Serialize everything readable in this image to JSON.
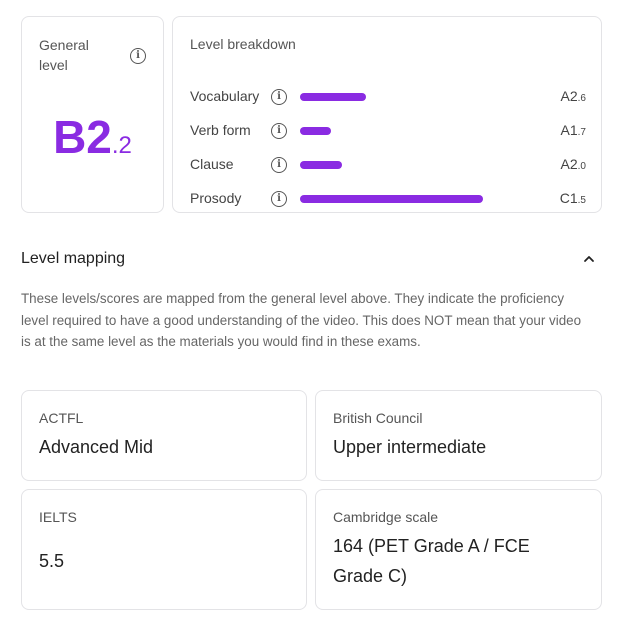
{
  "general": {
    "label": "General level",
    "level_main": "B2",
    "level_sub": ".2"
  },
  "breakdown": {
    "title": "Level breakdown",
    "items": [
      {
        "name": "Vocabulary",
        "level_main": "A2",
        "level_sub": ".6",
        "bar_fraction": 0.3
      },
      {
        "name": "Verb form",
        "level_main": "A1",
        "level_sub": ".7",
        "bar_fraction": 0.14
      },
      {
        "name": "Clause",
        "level_main": "A2",
        "level_sub": ".0",
        "bar_fraction": 0.19
      },
      {
        "name": "Prosody",
        "level_main": "C1",
        "level_sub": ".5",
        "bar_fraction": 0.83
      }
    ]
  },
  "mapping": {
    "title": "Level mapping",
    "description": "These levels/scores are mapped from the general level above. They indicate the proficiency level required to have a good understanding of the video. This does NOT mean that your video is at the same level as the materials you would find in these exams.",
    "actfl": {
      "label": "ACTFL",
      "value": "Advanced Mid"
    },
    "british": {
      "label": "British Council",
      "value": "Upper intermediate"
    },
    "ielts": {
      "label": "IELTS",
      "value": "5.5"
    },
    "cambridge": {
      "label": "Cambridge scale",
      "value": "164 (PET Grade A / FCE Grade C)"
    }
  },
  "colors": {
    "accent": "#8a2be2"
  },
  "icons": {
    "info": "info-icon",
    "collapse": "chevron-up-icon"
  }
}
